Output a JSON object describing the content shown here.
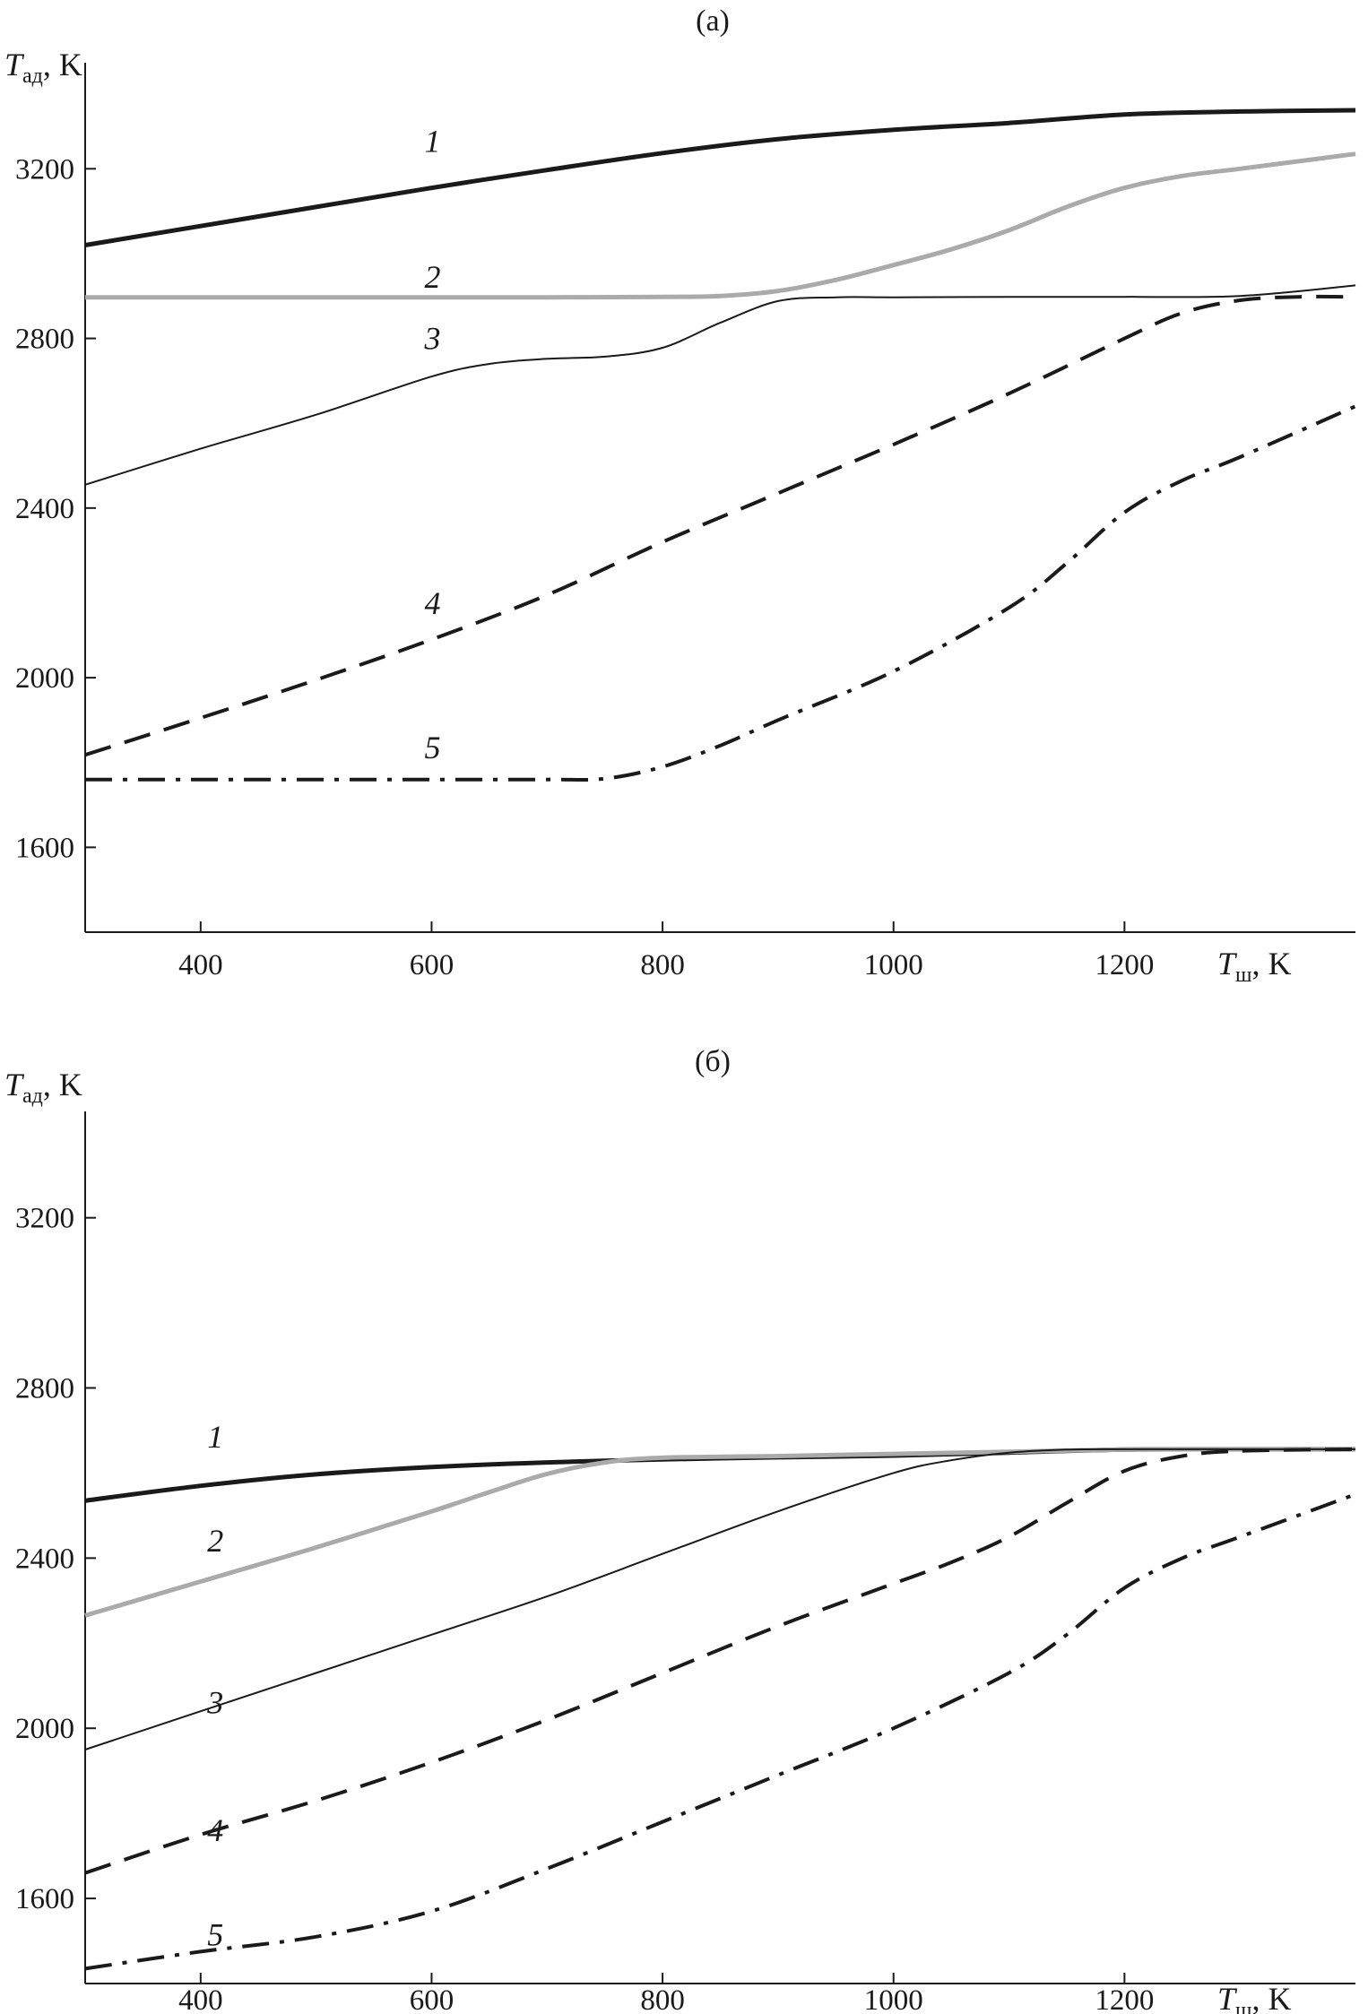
{
  "chart_data": [
    {
      "type": "line",
      "panel_label": "(a)",
      "ylabel": {
        "symbol": "T",
        "subscript": "ад",
        "unit": ", K"
      },
      "xlabel": {
        "symbol": "T",
        "subscript": "ш",
        "unit": ", K"
      },
      "xlim": [
        300,
        1400
      ],
      "ylim": [
        1400,
        3450
      ],
      "xticks": [
        400,
        600,
        800,
        1000,
        1200
      ],
      "yticks": [
        1600,
        2000,
        2400,
        2800,
        3200
      ],
      "grid": false,
      "series": [
        {
          "label": "1",
          "color": "#1a1a1a",
          "style": "solid-thick",
          "x": [
            300,
            400,
            500,
            600,
            700,
            800,
            900,
            1000,
            1100,
            1200,
            1300,
            1400
          ],
          "y": [
            3020,
            3065,
            3110,
            3155,
            3197,
            3237,
            3270,
            3292,
            3308,
            3328,
            3335,
            3338
          ],
          "label_at": [
            600,
            3240
          ]
        },
        {
          "label": "2",
          "color": "#aaaaaa",
          "style": "solid-thick",
          "x": [
            300,
            400,
            500,
            600,
            700,
            800,
            850,
            900,
            950,
            1000,
            1050,
            1100,
            1150,
            1200,
            1250,
            1300,
            1400
          ],
          "y": [
            2897,
            2897,
            2897,
            2897,
            2897,
            2898,
            2900,
            2912,
            2938,
            2973,
            3010,
            3055,
            3110,
            3155,
            3183,
            3200,
            3235
          ],
          "label_at": [
            600,
            2920
          ]
        },
        {
          "label": "3",
          "color": "#1a1a1a",
          "style": "solid-thin",
          "x": [
            300,
            400,
            500,
            600,
            650,
            700,
            750,
            800,
            850,
            900,
            950,
            1000,
            1100,
            1200,
            1300,
            1400
          ],
          "y": [
            2455,
            2540,
            2620,
            2710,
            2740,
            2752,
            2757,
            2778,
            2837,
            2888,
            2897,
            2897,
            2898,
            2898,
            2900,
            2925
          ],
          "label_at": [
            600,
            2775
          ]
        },
        {
          "label": "4",
          "color": "#1a1a1a",
          "style": "dashed",
          "x": [
            300,
            400,
            500,
            600,
            700,
            800,
            900,
            1000,
            1100,
            1200,
            1250,
            1300,
            1350,
            1400
          ],
          "y": [
            1818,
            1905,
            1995,
            2090,
            2195,
            2320,
            2435,
            2550,
            2670,
            2800,
            2860,
            2890,
            2898,
            2898
          ],
          "label_at": [
            600,
            2150
          ]
        },
        {
          "label": "5",
          "color": "#1a1a1a",
          "style": "dash-dot",
          "x": [
            300,
            400,
            500,
            600,
            700,
            750,
            800,
            850,
            900,
            1000,
            1100,
            1150,
            1200,
            1250,
            1300,
            1400
          ],
          "y": [
            1760,
            1760,
            1760,
            1760,
            1760,
            1762,
            1790,
            1840,
            1900,
            2015,
            2165,
            2270,
            2390,
            2465,
            2520,
            2640
          ],
          "label_at": [
            600,
            1810
          ]
        }
      ]
    },
    {
      "type": "line",
      "panel_label": "(б)",
      "ylabel": {
        "symbol": "T",
        "subscript": "ад",
        "unit": ", K"
      },
      "xlabel": {
        "symbol": "T",
        "subscript": "ш",
        "unit": ", K"
      },
      "xlim": [
        300,
        1400
      ],
      "ylim": [
        1400,
        3450
      ],
      "xticks": [
        400,
        600,
        800,
        1000,
        1200
      ],
      "yticks": [
        1600,
        2000,
        2400,
        2800,
        3200
      ],
      "grid": false,
      "series": [
        {
          "label": "1",
          "color": "#1a1a1a",
          "style": "solid-thick",
          "x": [
            300,
            400,
            500,
            600,
            700,
            800,
            900,
            1000,
            1100,
            1200,
            1300,
            1400
          ],
          "y": [
            2535,
            2570,
            2597,
            2614,
            2625,
            2632,
            2637,
            2641,
            2648,
            2655,
            2656,
            2656
          ],
          "label_at": [
            412,
            2660
          ]
        },
        {
          "label": "2",
          "color": "#aaaaaa",
          "style": "solid-thick",
          "x": [
            300,
            400,
            500,
            600,
            650,
            700,
            750,
            800,
            900,
            1000,
            1100,
            1200,
            1300,
            1400
          ],
          "y": [
            2265,
            2345,
            2425,
            2510,
            2555,
            2598,
            2625,
            2636,
            2640,
            2645,
            2650,
            2655,
            2656,
            2656
          ],
          "label_at": [
            412,
            2415
          ]
        },
        {
          "label": "3",
          "color": "#1a1a1a",
          "style": "solid-thin",
          "x": [
            300,
            400,
            500,
            600,
            700,
            800,
            900,
            1000,
            1050,
            1100,
            1150,
            1200,
            1300,
            1400
          ],
          "y": [
            1950,
            2040,
            2130,
            2220,
            2310,
            2410,
            2510,
            2600,
            2630,
            2648,
            2655,
            2656,
            2656,
            2656
          ],
          "label_at": [
            412,
            2035
          ]
        },
        {
          "label": "4",
          "color": "#1a1a1a",
          "style": "dashed",
          "x": [
            300,
            400,
            500,
            600,
            700,
            800,
            900,
            1000,
            1050,
            1100,
            1150,
            1200,
            1250,
            1300,
            1400
          ],
          "y": [
            1660,
            1750,
            1830,
            1920,
            2020,
            2130,
            2240,
            2340,
            2390,
            2450,
            2530,
            2605,
            2640,
            2652,
            2656
          ],
          "label_at": [
            412,
            1735
          ]
        },
        {
          "label": "5",
          "color": "#1a1a1a",
          "style": "dash-dot",
          "x": [
            300,
            400,
            500,
            600,
            700,
            800,
            900,
            1000,
            1100,
            1150,
            1200,
            1250,
            1300,
            1400
          ],
          "y": [
            1435,
            1475,
            1510,
            1570,
            1670,
            1780,
            1890,
            2000,
            2130,
            2220,
            2330,
            2400,
            2450,
            2550
          ],
          "label_at": [
            412,
            1490
          ]
        }
      ]
    }
  ]
}
